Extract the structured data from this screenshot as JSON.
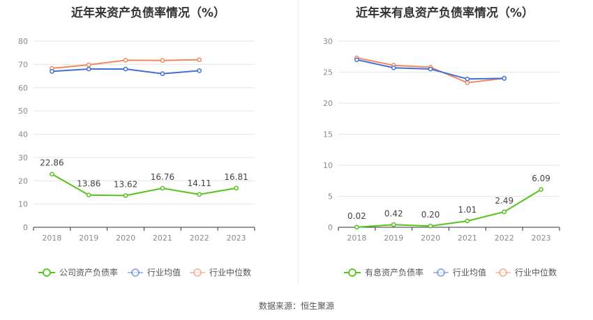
{
  "source": "数据来源：恒生聚源",
  "colors": {
    "company": "#52c41a",
    "industry_avg": "#3f6fd8",
    "industry_median": "#f0895e",
    "grid": "#e6e6e6",
    "axis": "#333333"
  },
  "chart_data": [
    {
      "type": "line",
      "title": "近年来资产负债率情况（%）",
      "categories": [
        "2018",
        "2019",
        "2020",
        "2021",
        "2022",
        "2023"
      ],
      "ylim": [
        0,
        80
      ],
      "yticks": [
        0,
        10,
        20,
        30,
        40,
        50,
        60,
        70,
        80
      ],
      "series": [
        {
          "name": "公司资产负债率",
          "values": [
            22.86,
            13.86,
            13.62,
            16.76,
            14.11,
            16.81
          ],
          "labels": [
            "22.86",
            "13.86",
            "13.62",
            "16.76",
            "14.11",
            "16.81"
          ]
        },
        {
          "name": "行业均值",
          "values": [
            67,
            68,
            68,
            66,
            67.3,
            null
          ]
        },
        {
          "name": "行业中位数",
          "values": [
            68.3,
            69.8,
            71.8,
            71.7,
            72,
            null
          ]
        }
      ]
    },
    {
      "type": "line",
      "title": "近年来有息资产负债率情况（%）",
      "categories": [
        "2018",
        "2019",
        "2020",
        "2021",
        "2022",
        "2023"
      ],
      "ylim": [
        0,
        30
      ],
      "yticks": [
        0,
        5,
        10,
        15,
        20,
        25,
        30
      ],
      "series": [
        {
          "name": "有息资产负债率",
          "values": [
            0.02,
            0.42,
            0.2,
            1.01,
            2.49,
            6.09
          ],
          "labels": [
            "0.02",
            "0.42",
            "0.20",
            "1.01",
            "2.49",
            "6.09"
          ]
        },
        {
          "name": "行业均值",
          "values": [
            27,
            25.7,
            25.5,
            23.9,
            24,
            null
          ]
        },
        {
          "name": "行业中位数",
          "values": [
            27.3,
            26.1,
            25.8,
            23.3,
            24,
            null
          ]
        }
      ]
    }
  ]
}
